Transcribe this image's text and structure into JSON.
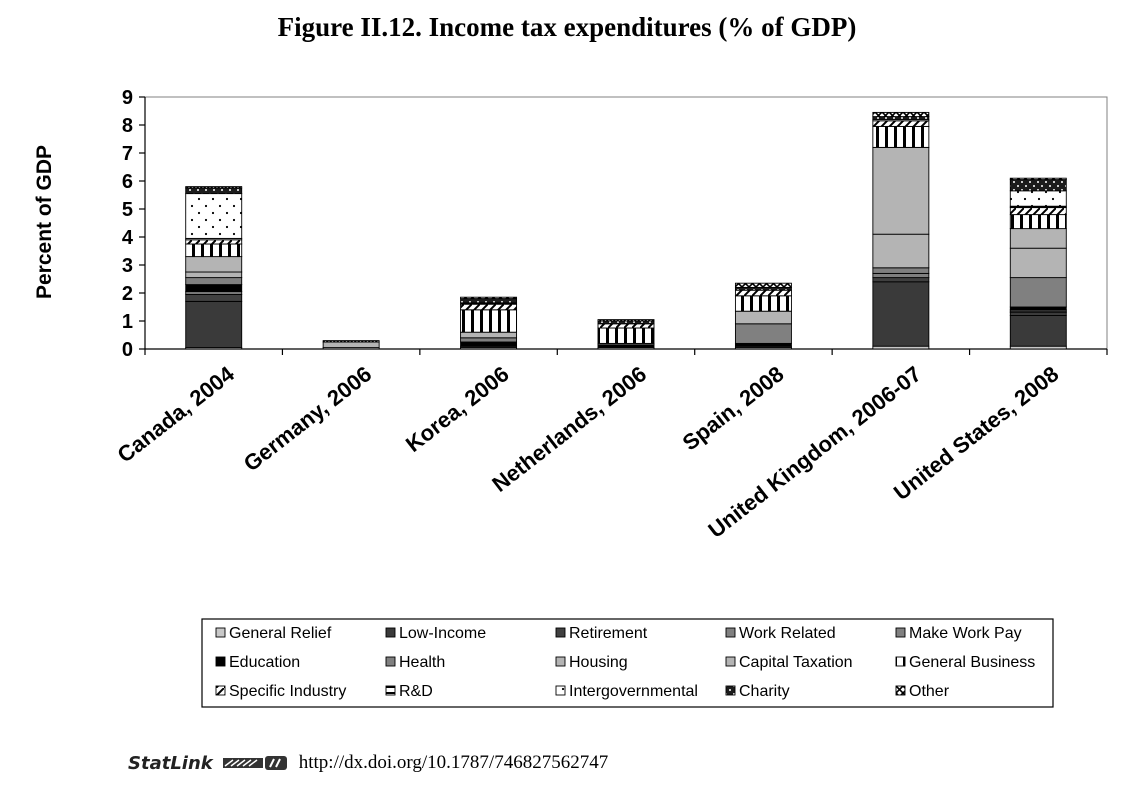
{
  "title": "Figure II.12. Income tax expenditures (% of GDP)",
  "statlink": {
    "logo": "StatLink",
    "url": "http://dx.doi.org/10.1787/746827562747"
  },
  "chart_data": {
    "type": "bar",
    "stacked": true,
    "ylabel": "Percent of GDP",
    "xlabel": "",
    "ylim": [
      0,
      9
    ],
    "yticks": [
      0,
      1,
      2,
      3,
      4,
      5,
      6,
      7,
      8,
      9
    ],
    "legend_position": "bottom",
    "categories": [
      "Canada, 2004",
      "Germany, 2006",
      "Korea, 2006",
      "Netherlands, 2006",
      "Spain, 2008",
      "United Kingdom, 2006-07",
      "United States, 2008"
    ],
    "series": [
      {
        "name": "General Relief",
        "color": "#c8c8c8",
        "pattern": "solid",
        "values": [
          0.05,
          0.05,
          0.05,
          0.05,
          0.05,
          0.1,
          0.1
        ]
      },
      {
        "name": "Low-Income",
        "color": "#3a3a3a",
        "pattern": "solid",
        "values": [
          1.65,
          0,
          0.05,
          0,
          0.05,
          2.3,
          1.1
        ]
      },
      {
        "name": "Retirement",
        "color": "#404040",
        "pattern": "solid",
        "values": [
          0.25,
          0,
          0,
          0,
          0,
          0.15,
          0.1
        ]
      },
      {
        "name": "Work Related",
        "color": "#808080",
        "pattern": "solid",
        "values": [
          0.1,
          0,
          0,
          0,
          0,
          0.15,
          0.05
        ]
      },
      {
        "name": "Make Work Pay",
        "color": "#808080",
        "pattern": "solid",
        "values": [
          0,
          0,
          0,
          0,
          0,
          0,
          0.05
        ]
      },
      {
        "name": "Education",
        "color": "#000000",
        "pattern": "solid",
        "values": [
          0.25,
          0,
          0.15,
          0.1,
          0.1,
          0,
          0.1
        ]
      },
      {
        "name": "Health",
        "color": "#808080",
        "pattern": "solid",
        "values": [
          0.25,
          0,
          0.15,
          0,
          0.7,
          0.2,
          1.05
        ]
      },
      {
        "name": "Housing",
        "color": "#b4b4b4",
        "pattern": "solid",
        "values": [
          0.2,
          0.2,
          0.2,
          0.05,
          0.45,
          1.2,
          1.05
        ]
      },
      {
        "name": "Capital Taxation",
        "color": "#b4b4b4",
        "pattern": "solid",
        "values": [
          0.55,
          0,
          0,
          0,
          0,
          3.1,
          0.7
        ]
      },
      {
        "name": "General Business",
        "color": "#ffffff",
        "pattern": "vstripes",
        "values": [
          0.45,
          0,
          0.8,
          0.55,
          0.55,
          0.75,
          0.5
        ]
      },
      {
        "name": "Specific Industry",
        "color": "#ffffff",
        "pattern": "hatch",
        "values": [
          0.15,
          0,
          0.2,
          0.15,
          0.2,
          0.2,
          0.25
        ]
      },
      {
        "name": "R&D",
        "color": "#ffffff",
        "pattern": "hline",
        "values": [
          0.05,
          0,
          0.05,
          0,
          0,
          0.05,
          0.05
        ]
      },
      {
        "name": "Intergovernmental",
        "color": "#ffffff",
        "pattern": "dots",
        "values": [
          1.6,
          0,
          0,
          0,
          0,
          0,
          0.55
        ]
      },
      {
        "name": "Charity",
        "color": "#1c1c1c",
        "pattern": "darkdots",
        "values": [
          0.2,
          0,
          0.15,
          0.1,
          0.1,
          0.1,
          0.4
        ]
      },
      {
        "name": "Other",
        "color": "#ffffff",
        "pattern": "diag",
        "values": [
          0.05,
          0.05,
          0.05,
          0.05,
          0.15,
          0.15,
          0.05
        ]
      }
    ]
  }
}
